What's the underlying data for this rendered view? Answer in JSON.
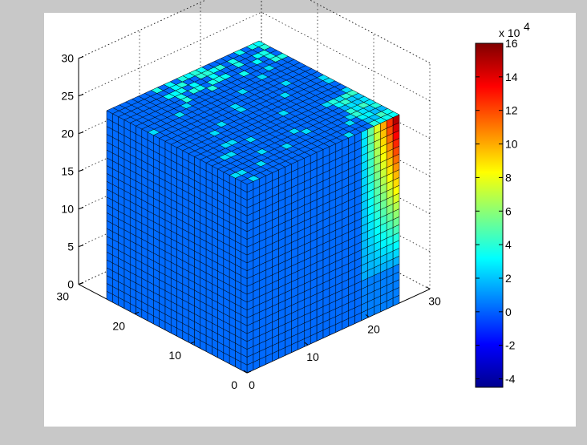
{
  "figure": {
    "background": "#c8c8c8"
  },
  "chart_data": {
    "type": "heatmap",
    "subtype": "3d-voxel-cube",
    "title": "",
    "xlabel": "",
    "ylabel": "",
    "zlabel": "",
    "x_ticks": [
      "0",
      "10",
      "20",
      "30"
    ],
    "y_ticks": [
      "0",
      "10",
      "20",
      "30"
    ],
    "z_ticks": [
      "0",
      "5",
      "10",
      "15",
      "20",
      "25",
      "30"
    ],
    "xlim": [
      0,
      30
    ],
    "ylim": [
      0,
      30
    ],
    "zlim": [
      0,
      30
    ],
    "grid": true,
    "grid_resolution": 24,
    "colormap": "jet",
    "colorbar": {
      "exponent_label": "x 10",
      "exponent_power": "4",
      "ticks": [
        "16",
        "14",
        "12",
        "10",
        "8",
        "6",
        "4",
        "2",
        "0",
        "-2",
        "-4"
      ],
      "clim": [
        -4.5,
        16
      ]
    },
    "field_description": "Front (x-z) face: value about 0 (blue) over most of the face; high values near the right edge top increasing to about 16 x 10^4 (dark red) at the top corner, grading down to cyan (about 2) near z = 5. Top face: mostly blue with scattered cyan/green cells near the back-right edge and along the right edge."
  }
}
